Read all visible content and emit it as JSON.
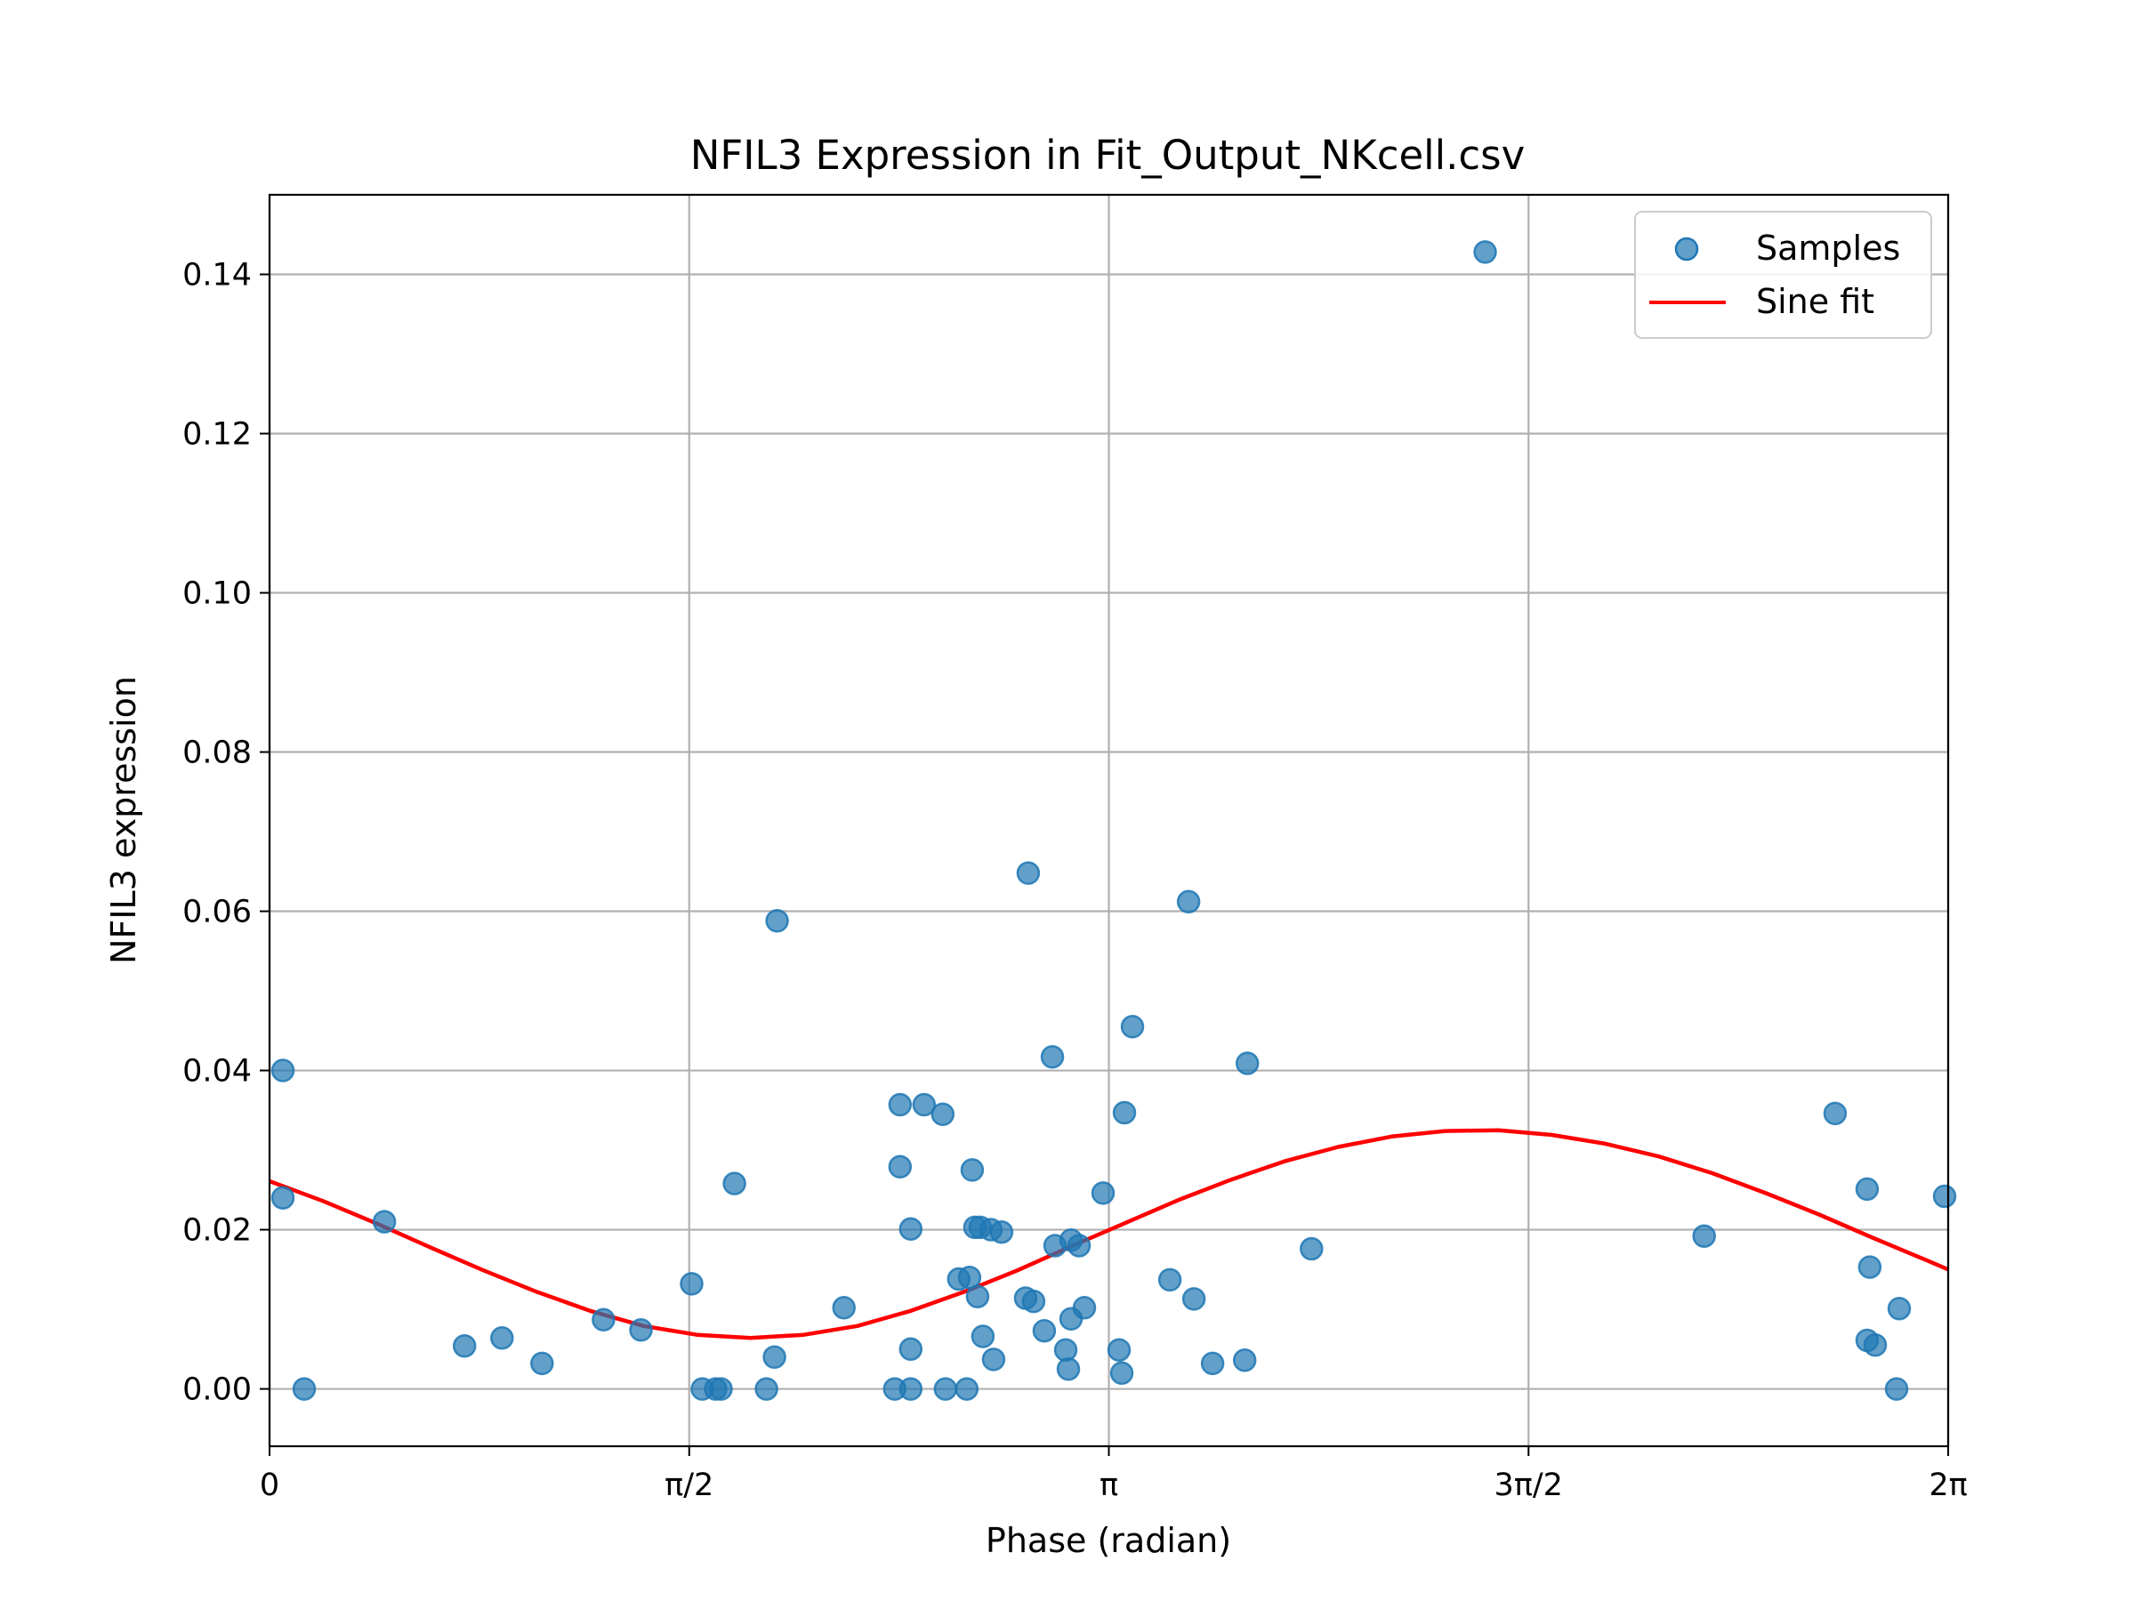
{
  "chart_data": {
    "type": "scatter",
    "title": "NFIL3 Expression in Fit_Output_NKcell.csv",
    "xlabel": "Phase (radian)",
    "ylabel": "NFIL3 expression",
    "xlim": [
      0,
      6.2832
    ],
    "ylim": [
      -0.0072,
      0.15
    ],
    "x_ticks": [
      {
        "value": 0,
        "label": "0"
      },
      {
        "value": 1.5708,
        "label": "π/2"
      },
      {
        "value": 3.1416,
        "label": "π"
      },
      {
        "value": 4.7124,
        "label": "3π/2"
      },
      {
        "value": 6.2832,
        "label": "2π"
      }
    ],
    "y_ticks": [
      {
        "value": 0.0,
        "label": "0.00"
      },
      {
        "value": 0.02,
        "label": "0.02"
      },
      {
        "value": 0.04,
        "label": "0.04"
      },
      {
        "value": 0.06,
        "label": "0.06"
      },
      {
        "value": 0.08,
        "label": "0.08"
      },
      {
        "value": 0.1,
        "label": "0.10"
      },
      {
        "value": 0.12,
        "label": "0.12"
      },
      {
        "value": 0.14,
        "label": "0.14"
      }
    ],
    "grid": true,
    "legend_position": "top-right",
    "series": [
      {
        "name": "Samples",
        "kind": "scatter",
        "color": "#1f77b4",
        "alpha": 0.7,
        "points": [
          [
            0.05,
            0.04
          ],
          [
            0.05,
            0.024
          ],
          [
            0.13,
            0.0
          ],
          [
            0.43,
            0.021
          ],
          [
            0.73,
            0.0054
          ],
          [
            0.87,
            0.0064
          ],
          [
            1.02,
            0.0032
          ],
          [
            1.25,
            0.0087
          ],
          [
            1.39,
            0.0074
          ],
          [
            1.58,
            0.0132
          ],
          [
            1.62,
            0.0
          ],
          [
            1.67,
            0.0
          ],
          [
            1.69,
            0.0
          ],
          [
            1.74,
            0.0258
          ],
          [
            1.86,
            0.0
          ],
          [
            1.89,
            0.004
          ],
          [
            1.9,
            0.0588
          ],
          [
            2.15,
            0.0102
          ],
          [
            2.34,
            0.0
          ],
          [
            2.36,
            0.0357
          ],
          [
            2.36,
            0.0279
          ],
          [
            2.4,
            0.0201
          ],
          [
            2.4,
            0.005
          ],
          [
            2.4,
            0.0
          ],
          [
            2.45,
            0.0357
          ],
          [
            2.52,
            0.0345
          ],
          [
            2.53,
            0.0
          ],
          [
            2.58,
            0.0138
          ],
          [
            2.61,
            0.0
          ],
          [
            2.62,
            0.014
          ],
          [
            2.63,
            0.0275
          ],
          [
            2.64,
            0.0203
          ],
          [
            2.65,
            0.0116
          ],
          [
            2.66,
            0.0203
          ],
          [
            2.67,
            0.0066
          ],
          [
            2.7,
            0.02
          ],
          [
            2.71,
            0.0037
          ],
          [
            2.74,
            0.0197
          ],
          [
            2.83,
            0.0114
          ],
          [
            2.84,
            0.0648
          ],
          [
            2.86,
            0.011
          ],
          [
            2.9,
            0.0073
          ],
          [
            2.93,
            0.0417
          ],
          [
            2.94,
            0.018
          ],
          [
            2.98,
            0.0049
          ],
          [
            2.99,
            0.0025
          ],
          [
            3.0,
            0.0088
          ],
          [
            3.0,
            0.0187
          ],
          [
            3.03,
            0.018
          ],
          [
            3.05,
            0.0102
          ],
          [
            3.12,
            0.0246
          ],
          [
            3.18,
            0.0049
          ],
          [
            3.19,
            0.002
          ],
          [
            3.2,
            0.0347
          ],
          [
            3.23,
            0.0455
          ],
          [
            3.37,
            0.0137
          ],
          [
            3.44,
            0.0612
          ],
          [
            3.46,
            0.0113
          ],
          [
            3.53,
            0.0032
          ],
          [
            3.65,
            0.0036
          ],
          [
            3.66,
            0.0409
          ],
          [
            3.9,
            0.0176
          ],
          [
            4.55,
            0.1428
          ],
          [
            5.37,
            0.0192
          ],
          [
            5.86,
            0.0346
          ],
          [
            5.98,
            0.0251
          ],
          [
            5.98,
            0.0061
          ],
          [
            5.99,
            0.0153
          ],
          [
            6.01,
            0.0055
          ],
          [
            6.09,
            0.0
          ],
          [
            6.1,
            0.0101
          ],
          [
            6.27,
            0.0242
          ]
        ]
      },
      {
        "name": "Sine fit",
        "kind": "line",
        "color": "#ff0000",
        "x": [
          0,
          0.2,
          0.4,
          0.6,
          0.8,
          1.0,
          1.2,
          1.4,
          1.6,
          1.8,
          2.0,
          2.2,
          2.4,
          2.6,
          2.8,
          3.0,
          3.2,
          3.4,
          3.6,
          3.8,
          4.0,
          4.2,
          4.4,
          4.6,
          4.8,
          5.0,
          5.2,
          5.4,
          5.6,
          5.8,
          6.0,
          6.2,
          6.2832
        ],
        "y": [
          0.0261,
          0.0236,
          0.0208,
          0.0178,
          0.0149,
          0.0122,
          0.0098,
          0.0079,
          0.0068,
          0.0064,
          0.0068,
          0.0079,
          0.0098,
          0.0122,
          0.0149,
          0.0179,
          0.0208,
          0.0237,
          0.0263,
          0.0286,
          0.0304,
          0.0317,
          0.0324,
          0.0325,
          0.0319,
          0.0308,
          0.0292,
          0.0271,
          0.0246,
          0.0219,
          0.019,
          0.0162,
          0.015
        ]
      }
    ]
  }
}
